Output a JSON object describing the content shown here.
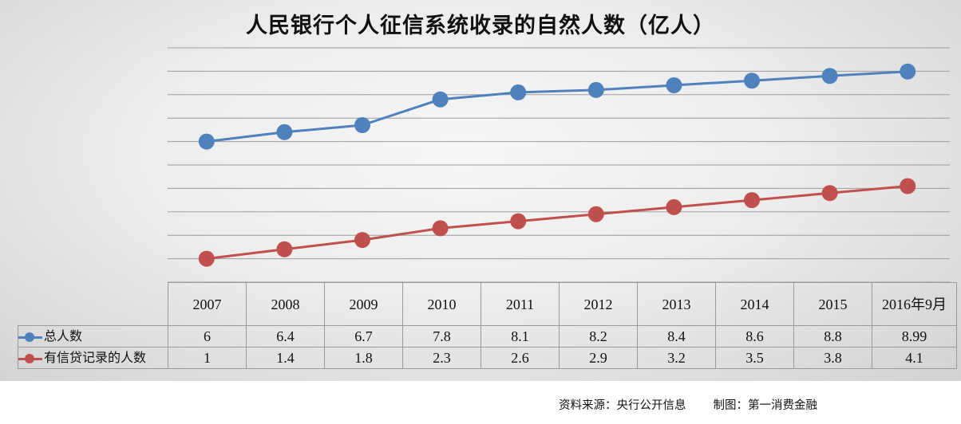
{
  "chart_data": {
    "type": "line",
    "title": "人民银行个人征信系统收录的自然人数（亿人）",
    "categories": [
      "2007",
      "2008",
      "2009",
      "2010",
      "2011",
      "2012",
      "2013",
      "2014",
      "2015",
      "2016年9月"
    ],
    "series": [
      {
        "name": "总人数",
        "color": "#4f81bd",
        "values": [
          6,
          6.4,
          6.7,
          7.8,
          8.1,
          8.2,
          8.4,
          8.6,
          8.8,
          8.99
        ]
      },
      {
        "name": "有信贷记录的人数",
        "color": "#c0504d",
        "values": [
          1,
          1.4,
          1.8,
          2.3,
          2.6,
          2.9,
          3.2,
          3.5,
          3.8,
          4.1
        ]
      }
    ],
    "table_values": [
      [
        "6",
        "6.4",
        "6.7",
        "7.8",
        "8.1",
        "8.2",
        "8.4",
        "8.6",
        "8.8",
        "8.99"
      ],
      [
        "1",
        "1.4",
        "1.8",
        "2.3",
        "2.6",
        "2.9",
        "3.2",
        "3.5",
        "3.8",
        "4.1"
      ]
    ],
    "ylim": [
      0,
      10
    ],
    "y_gridline_step": 1,
    "grid": true,
    "legend": "data-table-below",
    "xlabel": "",
    "ylabel": ""
  },
  "footer": {
    "source": "资料来源：央行公开信息",
    "credit": "制图：第一消费金融"
  }
}
